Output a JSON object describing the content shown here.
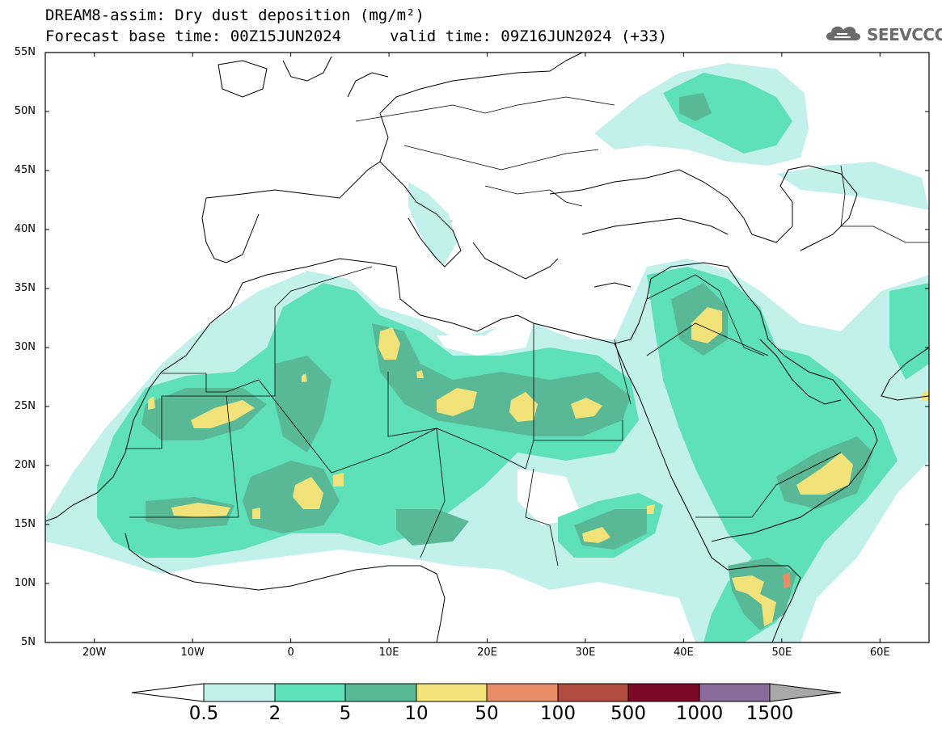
{
  "title": {
    "line1": "DREAM8-assim: Dry dust deposition (mg/m²)",
    "line2": "Forecast base time: 00Z15JUN2024",
    "valid": "valid time: 09Z16JUN2024 (+33)"
  },
  "logo": {
    "text": "SEEVCCC",
    "icon": "cloud-icon"
  },
  "map": {
    "projection": "lat-lon",
    "lon_range": [
      -25,
      65
    ],
    "lat_range": [
      5,
      55
    ],
    "lat_ticks": [
      "5N",
      "10N",
      "15N",
      "20N",
      "25N",
      "30N",
      "35N",
      "40N",
      "45N",
      "50N",
      "55N"
    ],
    "lon_ticks": [
      "20W",
      "10W",
      "0",
      "10E",
      "20E",
      "30E",
      "40E",
      "50E",
      "60E"
    ]
  },
  "colorbar": {
    "labels": [
      "0.5",
      "2",
      "5",
      "10",
      "50",
      "100",
      "500",
      "1000",
      "1500"
    ],
    "colors": [
      "#c2f0ea",
      "#5ee0b8",
      "#59b895",
      "#f1e27a",
      "#e98d66",
      "#b24c3e",
      "#7c0a26",
      "#8b6a9c",
      "#a8a8a8"
    ],
    "under_color": "#ffffff"
  },
  "dust_levels": {
    "lightest": "#c2f0ea",
    "light": "#5ee0b8",
    "medium": "#59b895",
    "high": "#f1e27a",
    "peak": "#e98d66"
  }
}
